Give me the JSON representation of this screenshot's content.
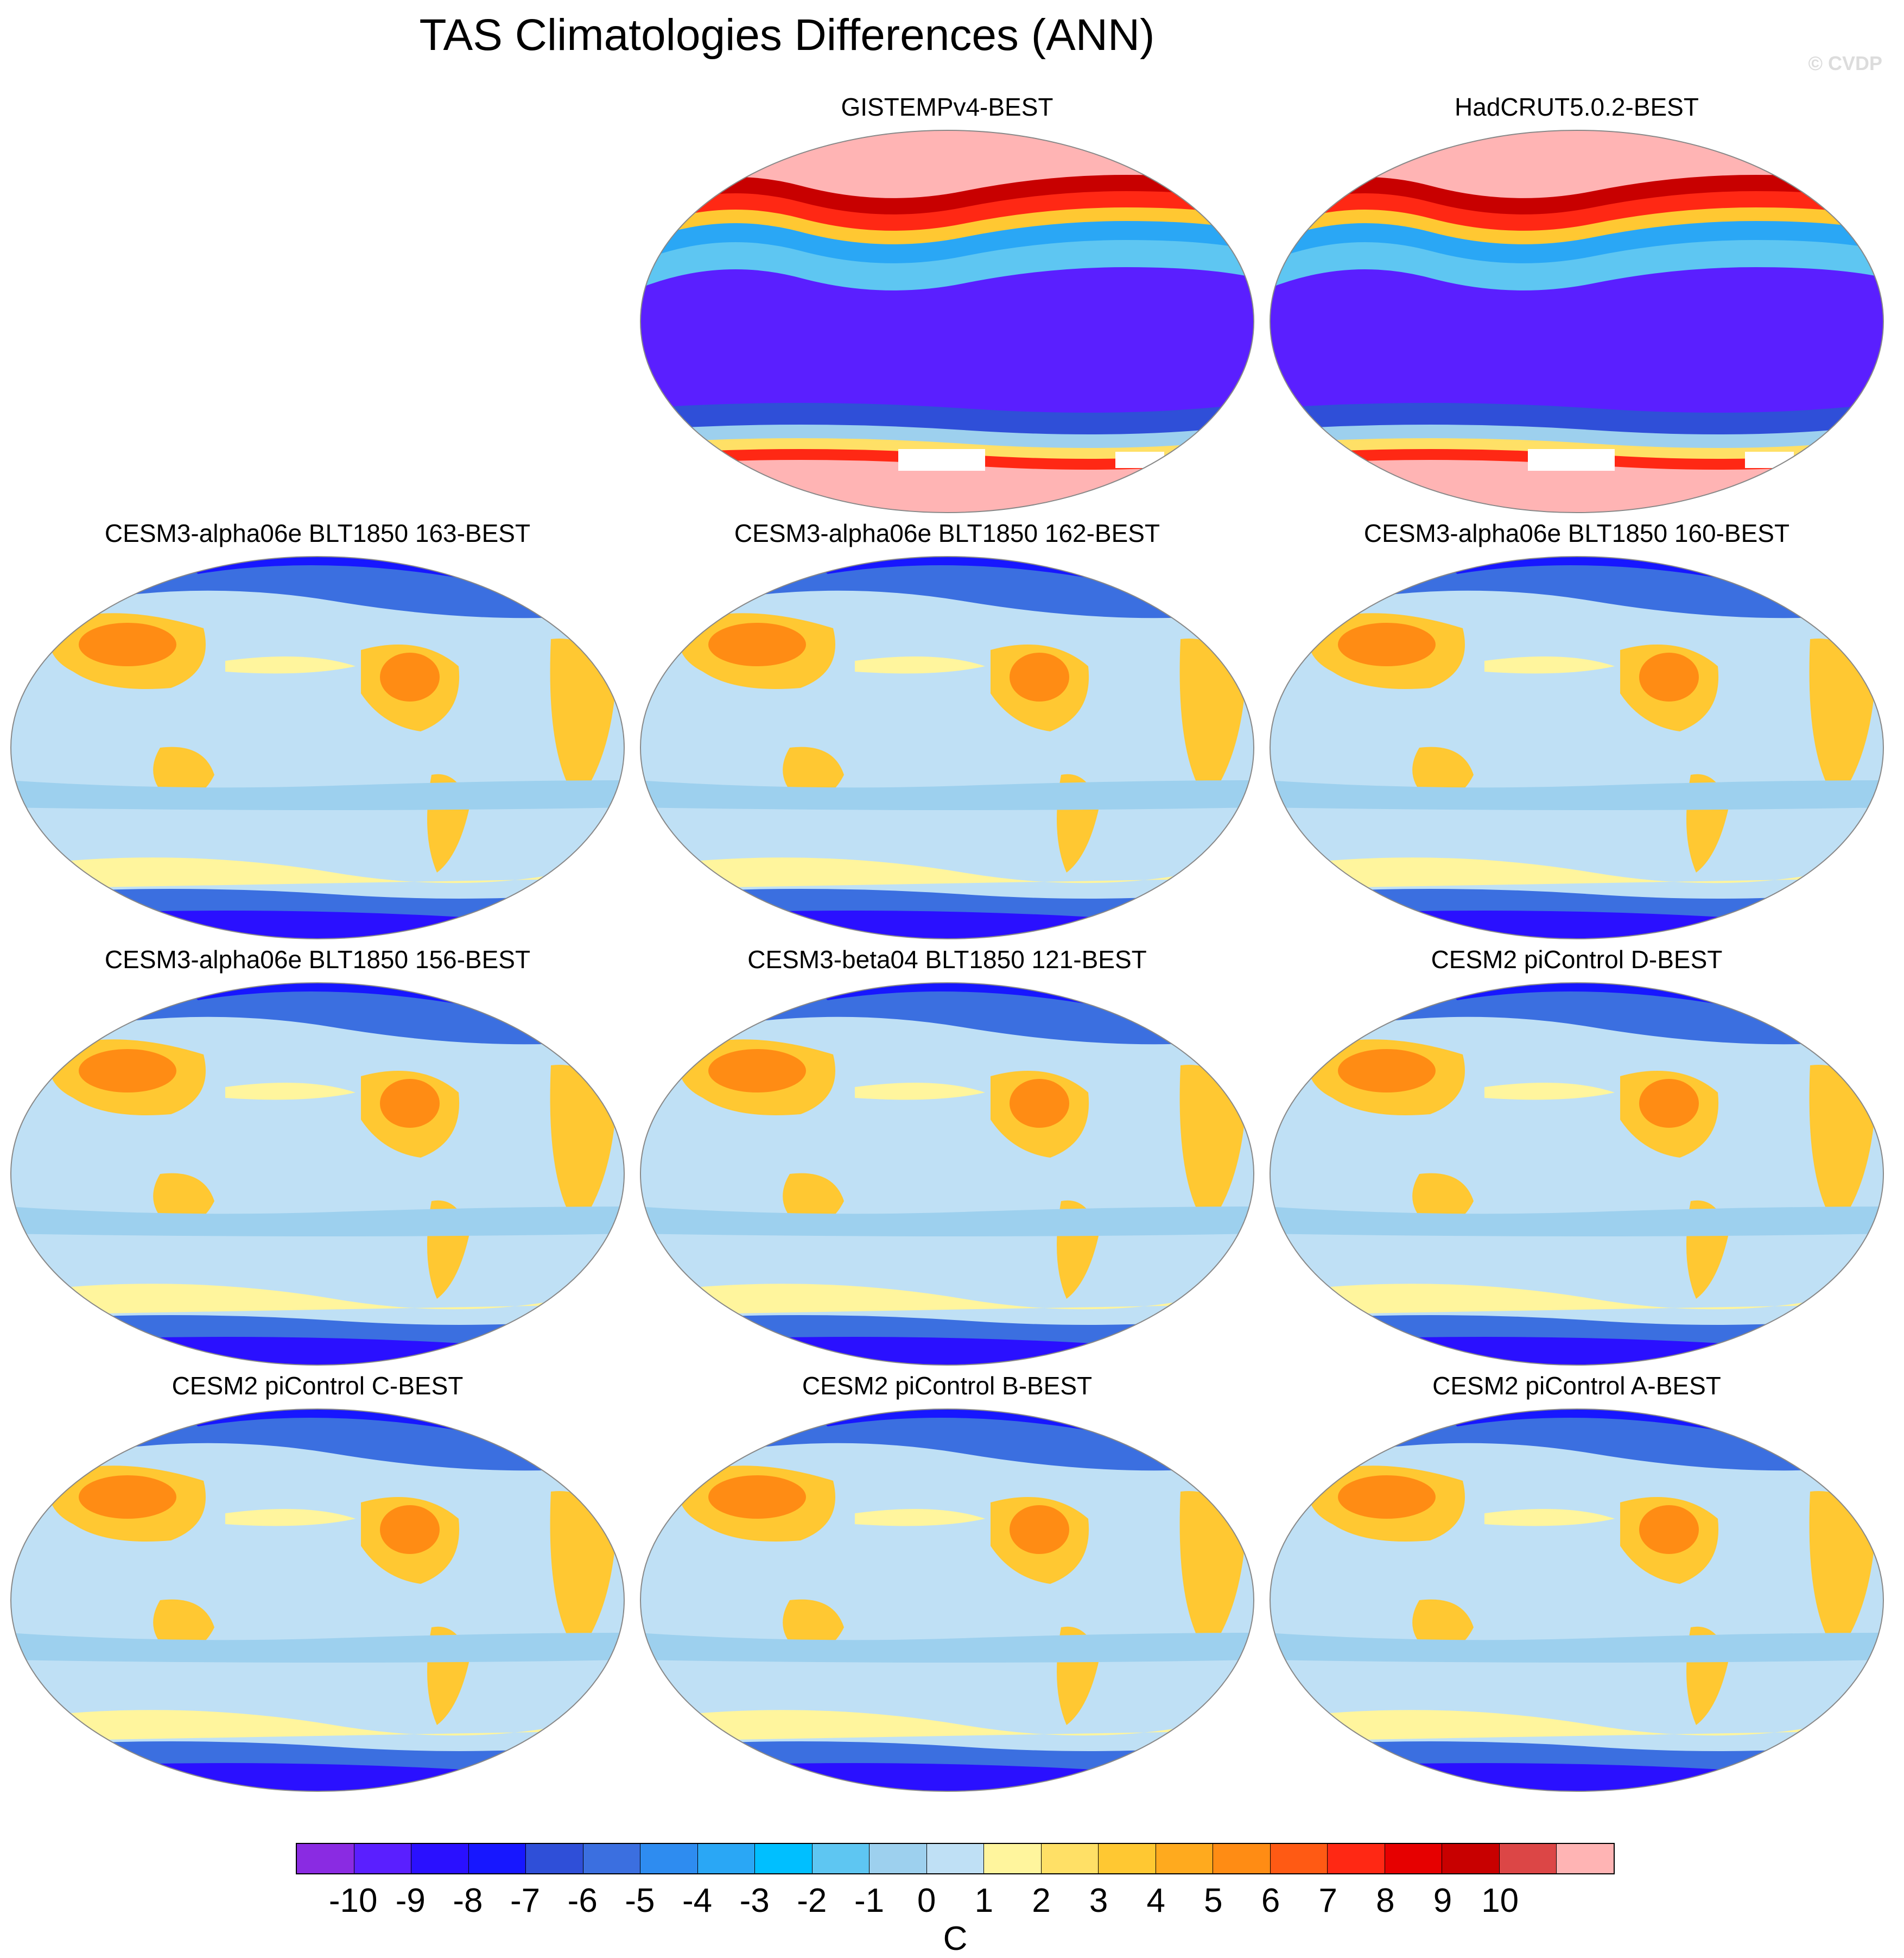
{
  "title": "TAS Climatologies Differences (ANN)",
  "copyright": "© CVDP",
  "colors": {
    "levels": [
      "#8a2be2",
      "#5a1fff",
      "#2a10ff",
      "#1717ff",
      "#2f4fd8",
      "#3b6fe0",
      "#2e8cf0",
      "#2aa7f5",
      "#00bfff",
      "#5ec6f2",
      "#9dd0ee",
      "#bfe0f5",
      "#fff59d",
      "#ffe066",
      "#ffc832",
      "#ffaa1e",
      "#ff8c14",
      "#ff5a14",
      "#ff2814",
      "#e60000",
      "#c80000",
      "#dc4646",
      "#ffb4b4"
    ],
    "ocean": "#bfe0f5",
    "land_warm": "#ffc832",
    "land_cold": "#3b6fe0",
    "coast": "#555555"
  },
  "panels": [
    {
      "title": "GISTEMPv4-BEST",
      "pattern": "obs"
    },
    {
      "title": "HadCRUT5.0.2-BEST",
      "pattern": "obs"
    },
    {
      "title": "CESM3-alpha06e BLT1850 163-BEST",
      "pattern": "model"
    },
    {
      "title": "CESM3-alpha06e BLT1850 162-BEST",
      "pattern": "model"
    },
    {
      "title": "CESM3-alpha06e BLT1850 160-BEST",
      "pattern": "model"
    },
    {
      "title": "CESM3-alpha06e BLT1850 156-BEST",
      "pattern": "model"
    },
    {
      "title": "CESM3-beta04 BLT1850 121-BEST",
      "pattern": "model"
    },
    {
      "title": "CESM2 piControl D-BEST",
      "pattern": "model"
    },
    {
      "title": "CESM2 piControl C-BEST",
      "pattern": "model"
    },
    {
      "title": "CESM2 piControl B-BEST",
      "pattern": "model"
    },
    {
      "title": "CESM2 piControl A-BEST",
      "pattern": "model"
    }
  ],
  "colorbar": {
    "ticks": [
      "-10",
      "-9",
      "-8",
      "-7",
      "-6",
      "-5",
      "-4",
      "-3",
      "-2",
      "-1",
      "0",
      "1",
      "2",
      "3",
      "4",
      "5",
      "6",
      "7",
      "8",
      "9",
      "10"
    ],
    "unit": "C"
  }
}
